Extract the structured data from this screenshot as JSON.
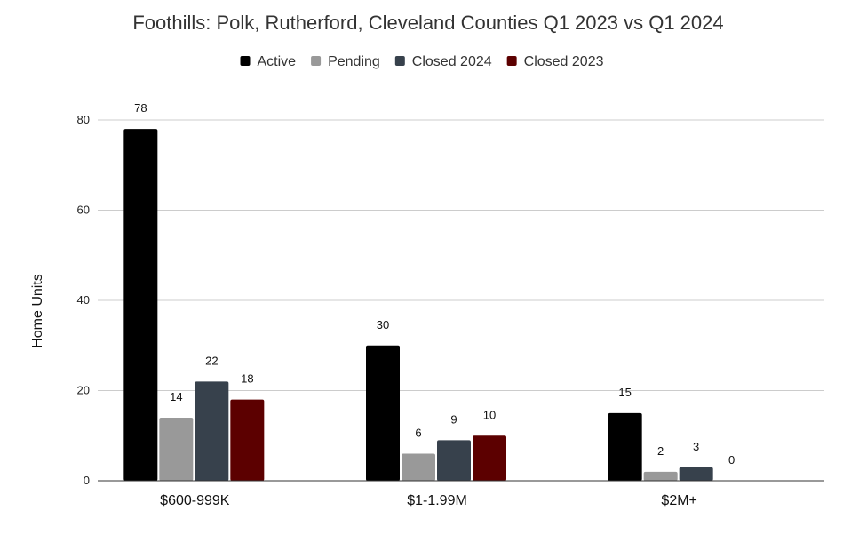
{
  "chart_data": {
    "type": "bar",
    "title": "Foothills: Polk, Rutherford, Cleveland Counties Q1 2023 vs Q1 2024",
    "xlabel": "",
    "ylabel": "Home Units",
    "ylim": [
      0,
      80
    ],
    "yticks": [
      0,
      20,
      40,
      60,
      80
    ],
    "grid": true,
    "legend_position": "top",
    "categories": [
      "$600-999K",
      "$1-1.99M",
      "$2M+"
    ],
    "series": [
      {
        "name": "Active",
        "color": "#000000",
        "values": [
          78,
          30,
          15
        ]
      },
      {
        "name": "Pending",
        "color": "#999999",
        "values": [
          14,
          6,
          2
        ]
      },
      {
        "name": "Closed 2024",
        "color": "#37414c",
        "values": [
          22,
          9,
          3
        ]
      },
      {
        "name": "Closed 2023",
        "color": "#5c0000",
        "values": [
          18,
          10,
          0
        ]
      }
    ]
  }
}
